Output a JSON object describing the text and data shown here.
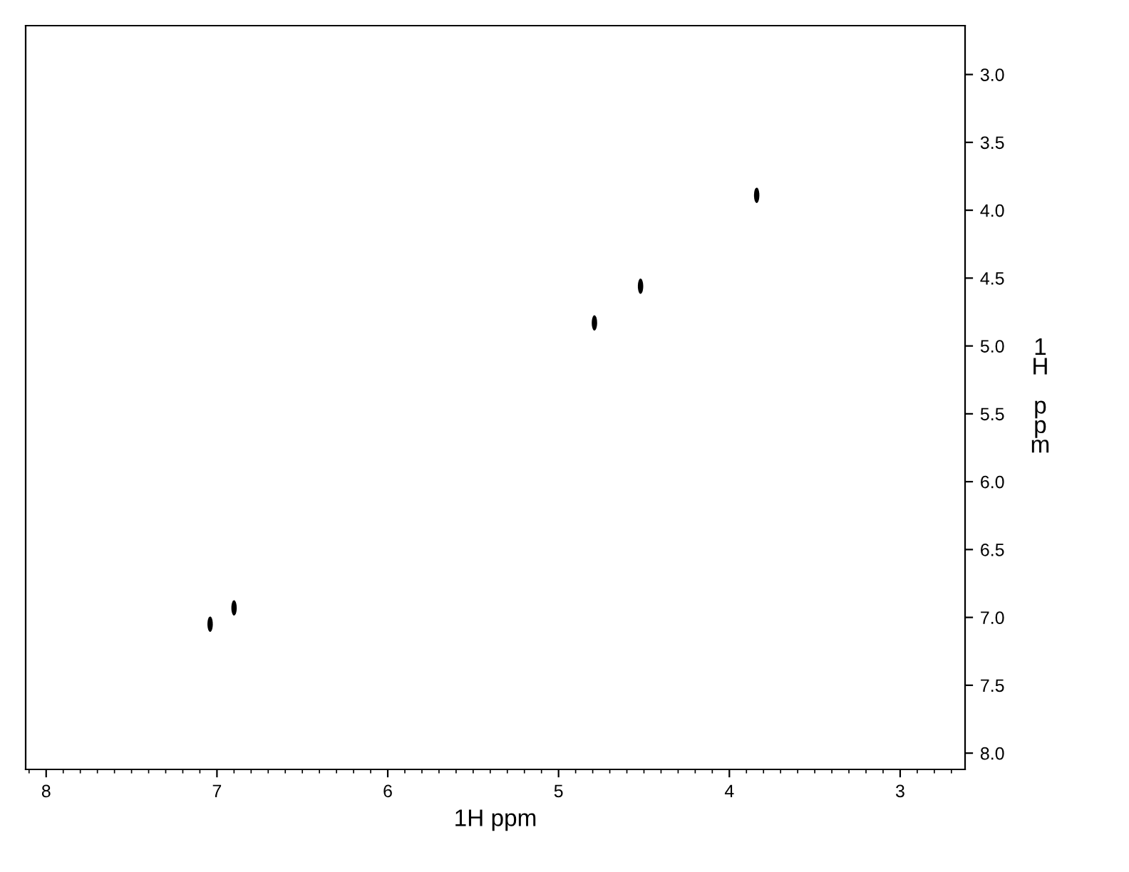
{
  "chart_data": {
    "type": "scatter",
    "xlabel": "1H ppm",
    "ylabel": "1H ppm",
    "x": [
      7.04,
      6.9,
      4.79,
      4.52,
      3.84
    ],
    "series": [
      {
        "color": "#000000",
        "values": [
          7.05,
          6.93,
          4.83,
          4.56,
          3.89
        ]
      }
    ],
    "xlim": [
      8.12,
      2.62
    ],
    "ylim": [
      8.12,
      2.64
    ],
    "xticks": [
      8,
      7,
      6,
      5,
      4,
      3
    ],
    "yticks": [
      {
        "value": 3,
        "label": "3.0"
      },
      3.5,
      {
        "value": 4,
        "label": "4.0"
      },
      4.5,
      {
        "value": 5,
        "label": "5.0"
      },
      5.5,
      {
        "value": 6,
        "label": "6.0"
      },
      6.5,
      {
        "value": 7,
        "label": "7.0"
      },
      7.5,
      {
        "value": 8,
        "label": "8.0"
      }
    ],
    "grid": false,
    "legend": false
  }
}
